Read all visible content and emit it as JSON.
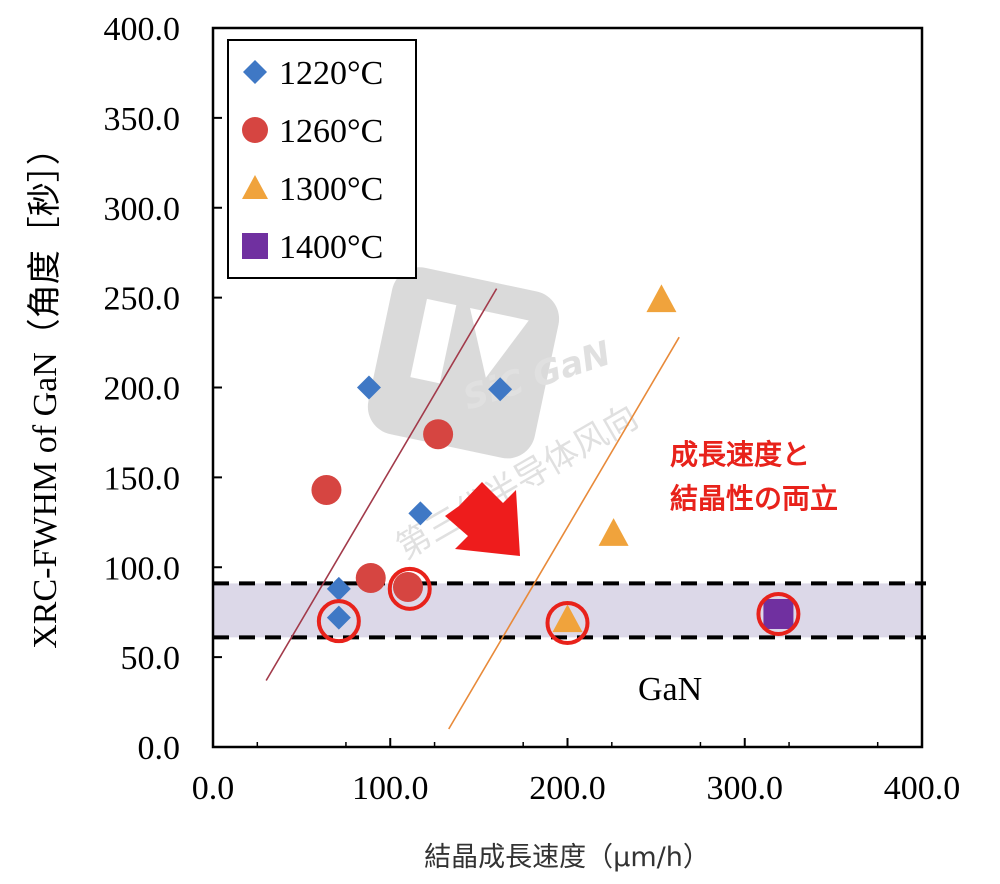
{
  "chart_data": {
    "type": "scatter",
    "xlabel": "結晶成長速度（μm/h）",
    "ylabel": "XRC-FWHM of GaN（角度［秒］）",
    "xlim": [
      0,
      400
    ],
    "ylim": [
      0,
      400
    ],
    "x_tick_labels": [
      "0.0",
      "100.0",
      "200.0",
      "300.0",
      "400.0"
    ],
    "y_tick_labels": [
      "0.0",
      "50.0",
      "100.0",
      "150.0",
      "200.0",
      "250.0",
      "300.0",
      "350.0",
      "400.0"
    ],
    "x_ticks": [
      0,
      100,
      200,
      300,
      400
    ],
    "y_ticks": [
      0,
      50,
      100,
      150,
      200,
      250,
      300,
      350,
      400
    ],
    "grid": false,
    "legend_position": "top-left",
    "series": [
      {
        "name": "1220°C",
        "marker": "diamond",
        "color": "#3f78c5",
        "points": [
          [
            88,
            200
          ],
          [
            162,
            199
          ],
          [
            117,
            130
          ],
          [
            71,
            88
          ],
          [
            71,
            72
          ]
        ]
      },
      {
        "name": "1260°C",
        "marker": "circle",
        "color": "#d64541",
        "points": [
          [
            64,
            143
          ],
          [
            127,
            174
          ],
          [
            89,
            94
          ],
          [
            110,
            89
          ]
        ]
      },
      {
        "name": "1300°C",
        "marker": "triangle",
        "color": "#f0a33c",
        "points": [
          [
            253,
            249
          ],
          [
            226,
            119
          ],
          [
            200,
            71
          ]
        ]
      },
      {
        "name": "1400°C",
        "marker": "square",
        "color": "#7030a0",
        "points": [
          [
            319,
            74
          ]
        ]
      }
    ],
    "highlight_band": {
      "y_range": [
        61,
        91
      ],
      "color": "#dcd8e8",
      "label": "GaN"
    },
    "highlight_circles": [
      [
        71,
        70
      ],
      [
        111,
        88
      ],
      [
        200,
        69
      ],
      [
        319,
        74
      ]
    ],
    "trend_lines": [
      {
        "color": "#a23a4a",
        "from": [
          30,
          37
        ],
        "to": [
          160,
          255
        ]
      },
      {
        "color": "#e88a3a",
        "from": [
          133,
          10
        ],
        "to": [
          263,
          228
        ]
      }
    ],
    "annotation": {
      "lines": [
        "成長速度と",
        "結晶性の両立"
      ],
      "color": "#e8221b"
    },
    "watermark": {
      "logo_text": "SiC GaN",
      "text": "第三代半导体风向"
    }
  }
}
